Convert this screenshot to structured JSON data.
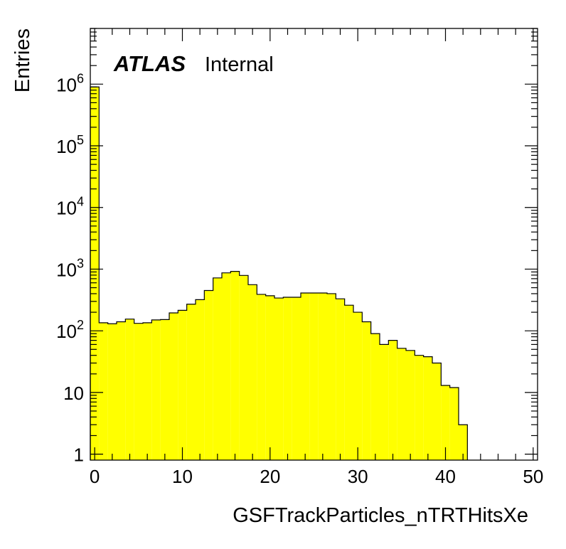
{
  "chart_data": {
    "type": "bar",
    "title": "",
    "xlabel": "GSFTrackParticles_nTRTHitsXe",
    "ylabel": "Entries",
    "xlim": [
      -0.5,
      50.5
    ],
    "ylim": [
      0.8,
      8000000
    ],
    "y_scale": "log",
    "bin_width": 1,
    "x": [
      0,
      1,
      2,
      3,
      4,
      5,
      6,
      7,
      8,
      9,
      10,
      11,
      12,
      13,
      14,
      15,
      16,
      17,
      18,
      19,
      20,
      21,
      22,
      23,
      24,
      25,
      26,
      27,
      28,
      29,
      30,
      31,
      32,
      33,
      34,
      35,
      36,
      37,
      38,
      39,
      40,
      41,
      42,
      43,
      44,
      45,
      46,
      47,
      48,
      49,
      50
    ],
    "values": [
      900000,
      135,
      130,
      140,
      155,
      132,
      135,
      150,
      152,
      195,
      215,
      270,
      320,
      450,
      720,
      870,
      920,
      790,
      560,
      390,
      370,
      340,
      350,
      350,
      410,
      410,
      410,
      400,
      330,
      260,
      200,
      140,
      90,
      60,
      70,
      52,
      48,
      40,
      38,
      30,
      13,
      12,
      3,
      0,
      0,
      0,
      0,
      0,
      0,
      0,
      0
    ],
    "x_ticks": [
      "0",
      "10",
      "20",
      "30",
      "40",
      "50"
    ],
    "y_ticks": [
      {
        "base": "1",
        "exp": ""
      },
      {
        "base": "10",
        "exp": ""
      },
      {
        "base": "10",
        "exp": "2"
      },
      {
        "base": "10",
        "exp": "3"
      },
      {
        "base": "10",
        "exp": "4"
      },
      {
        "base": "10",
        "exp": "5"
      },
      {
        "base": "10",
        "exp": "6"
      }
    ],
    "fill_color": "#ffff00",
    "line_color": "#000000"
  },
  "label": {
    "experiment": "ATLAS",
    "status": "Internal"
  }
}
